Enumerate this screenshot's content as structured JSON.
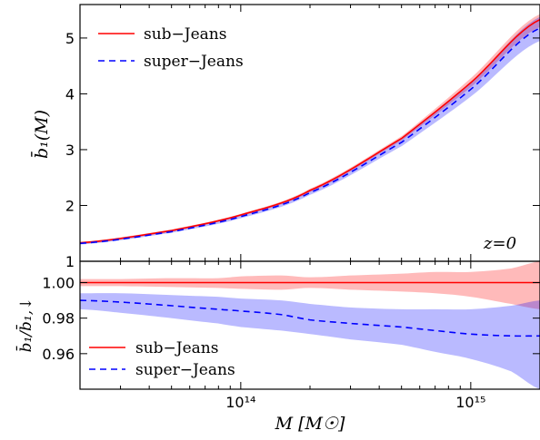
{
  "chart_data": [
    {
      "panel": "top",
      "type": "line",
      "xscale": "log",
      "xlim": [
        20000000000000.0,
        2000000000000000.0
      ],
      "ylim": [
        1,
        5.6
      ],
      "yticks": [
        1,
        2,
        3,
        4,
        5
      ],
      "ytick_labels": [
        "1",
        "2",
        "3",
        "4",
        "5"
      ],
      "ylabel": "b̄₁(M)",
      "annotation": "z=0",
      "legend_position": "upper-left",
      "x": [
        20000000000000.0,
        50000000000000.0,
        100000000000000.0,
        200000000000000.0,
        500000000000000.0,
        1000000000000000.0,
        2000000000000000.0
      ],
      "series": [
        {
          "name": "sub−Jeans",
          "style": "solid",
          "color": "#ff0000",
          "values": [
            1.33,
            1.55,
            1.83,
            2.27,
            3.2,
            4.2,
            5.33
          ],
          "band_lo": [
            1.31,
            1.53,
            1.81,
            2.24,
            3.16,
            4.12,
            5.2
          ],
          "band_hi": [
            1.35,
            1.57,
            1.85,
            2.3,
            3.24,
            4.28,
            5.43
          ]
        },
        {
          "name": "super−Jeans",
          "style": "dashed",
          "color": "#0000ff",
          "values": [
            1.32,
            1.53,
            1.8,
            2.23,
            3.13,
            4.08,
            5.18
          ],
          "band_lo": [
            1.3,
            1.51,
            1.77,
            2.19,
            3.06,
            3.95,
            4.95
          ],
          "band_hi": [
            1.34,
            1.55,
            1.83,
            2.27,
            3.19,
            4.2,
            5.38
          ]
        }
      ]
    },
    {
      "panel": "bottom",
      "type": "line",
      "xscale": "log",
      "xlim": [
        20000000000000.0,
        2000000000000000.0
      ],
      "ylim": [
        0.94,
        1.012
      ],
      "yticks": [
        0.96,
        0.98,
        1.0
      ],
      "ytick_labels": [
        "0.96",
        "0.98",
        "1.00"
      ],
      "xtick_labels": [
        "10¹⁴",
        "10¹⁵"
      ],
      "xticks": [
        100000000000000.0,
        1000000000000000.0
      ],
      "ylabel": "b̄₁/b̄₁,↓",
      "xlabel": "M [M☉]",
      "legend_position": "lower-left",
      "x": [
        20000000000000.0,
        30000000000000.0,
        50000000000000.0,
        80000000000000.0,
        100000000000000.0,
        150000000000000.0,
        200000000000000.0,
        300000000000000.0,
        500000000000000.0,
        700000000000000.0,
        1000000000000000.0,
        1500000000000000.0,
        2000000000000000.0
      ],
      "series": [
        {
          "name": "sub−Jeans",
          "style": "solid",
          "color": "#ff0000",
          "values": [
            1.0,
            1.0,
            1.0,
            1.0,
            1.0,
            1.0,
            1.0,
            1.0,
            1.0,
            1.0,
            1.0,
            1.0,
            1.0
          ],
          "band_lo": [
            0.998,
            0.998,
            0.9975,
            0.997,
            0.9965,
            0.996,
            0.997,
            0.996,
            0.995,
            0.994,
            0.992,
            0.988,
            0.985
          ],
          "band_hi": [
            1.002,
            1.002,
            1.0025,
            1.0025,
            1.0035,
            1.004,
            1.003,
            1.004,
            1.005,
            1.006,
            1.006,
            1.008,
            1.012
          ]
        },
        {
          "name": "super−Jeans",
          "style": "dashed",
          "color": "#0000ff",
          "values": [
            0.99,
            0.989,
            0.987,
            0.985,
            0.984,
            0.982,
            0.979,
            0.977,
            0.975,
            0.973,
            0.971,
            0.97,
            0.97
          ],
          "band_lo": [
            0.985,
            0.983,
            0.98,
            0.977,
            0.975,
            0.973,
            0.971,
            0.968,
            0.965,
            0.961,
            0.957,
            0.95,
            0.94
          ],
          "band_hi": [
            0.994,
            0.994,
            0.993,
            0.992,
            0.991,
            0.99,
            0.988,
            0.986,
            0.985,
            0.985,
            0.985,
            0.987,
            0.99
          ]
        }
      ]
    }
  ]
}
